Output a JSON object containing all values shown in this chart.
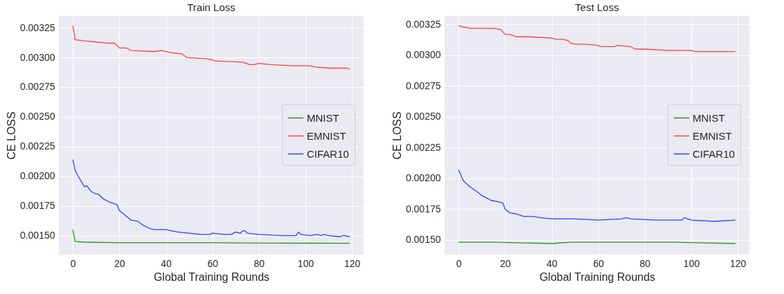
{
  "chart_data": [
    {
      "type": "line",
      "title": "Train Loss",
      "xlabel": "Global Training Rounds",
      "ylabel": "CE LOSS",
      "legend": "right",
      "grid": true,
      "xlim": [
        -6,
        125
      ],
      "xticks": [
        0,
        20,
        40,
        60,
        80,
        100,
        120
      ],
      "ylim": [
        0.00134,
        0.00335
      ],
      "yticks": [
        {
          "value": 0.0015,
          "label": "0.00150"
        },
        {
          "value": 0.00175,
          "label": "0.00175"
        },
        {
          "value": 0.002,
          "label": "0.00200"
        },
        {
          "value": 0.00225,
          "label": "0.00225"
        },
        {
          "value": 0.0025,
          "label": "0.00250"
        },
        {
          "value": 0.00275,
          "label": "0.00275"
        },
        {
          "value": 0.003,
          "label": "0.00300"
        },
        {
          "value": 0.00325,
          "label": "0.00325"
        }
      ],
      "series": [
        {
          "name": "MNIST",
          "color": "#229922",
          "x": [
            0,
            1,
            5,
            20,
            40,
            60,
            80,
            100,
            119
          ],
          "values": [
            0.00155,
            0.00145,
            0.001445,
            0.00144,
            0.00144,
            0.00144,
            0.001437,
            0.001436,
            0.001435
          ]
        },
        {
          "name": "EMNIST",
          "color": "#ff4040",
          "x": [
            0,
            1,
            5,
            10,
            15,
            18,
            20,
            23,
            25,
            35,
            38,
            40,
            42,
            47,
            49,
            57,
            60,
            61,
            73,
            76,
            78,
            80,
            85,
            95,
            102,
            104,
            110,
            118,
            119
          ],
          "values": [
            0.00327,
            0.00315,
            0.00314,
            0.00313,
            0.00312,
            0.00312,
            0.00308,
            0.00308,
            0.00306,
            0.00305,
            0.00306,
            0.00305,
            0.00304,
            0.00303,
            0.003,
            0.00299,
            0.00298,
            0.00297,
            0.00296,
            0.00294,
            0.00294,
            0.00295,
            0.00294,
            0.00293,
            0.00293,
            0.00292,
            0.00291,
            0.00291,
            0.0029
          ]
        },
        {
          "name": "CIFAR10",
          "color": "#3b3bff",
          "x": [
            0,
            1,
            2,
            5,
            6,
            8,
            10,
            11,
            13,
            16,
            19,
            20,
            22,
            25,
            28,
            30,
            33,
            35,
            40,
            45,
            50,
            55,
            59,
            60,
            65,
            68,
            70,
            72,
            73,
            74,
            75,
            80,
            90,
            96,
            97,
            98,
            102,
            105,
            107,
            108,
            110,
            115,
            116,
            117,
            119
          ],
          "values": [
            0.00214,
            0.00205,
            0.00201,
            0.00191,
            0.00192,
            0.00187,
            0.00185,
            0.00185,
            0.00181,
            0.00178,
            0.00176,
            0.00171,
            0.00168,
            0.00163,
            0.00162,
            0.00159,
            0.00156,
            0.00155,
            0.00155,
            0.00153,
            0.00152,
            0.00151,
            0.00151,
            0.00152,
            0.00151,
            0.00151,
            0.00153,
            0.00152,
            0.00154,
            0.00154,
            0.00152,
            0.00151,
            0.0015,
            0.0015,
            0.00153,
            0.00151,
            0.0015,
            0.00151,
            0.0015,
            0.00151,
            0.0015,
            0.00149,
            0.0015,
            0.0015,
            0.00149
          ]
        }
      ]
    },
    {
      "type": "line",
      "title": "Test Loss",
      "xlabel": "Global Training Rounds",
      "ylabel": "CE LOSS",
      "legend": "right",
      "grid": true,
      "xlim": [
        -6,
        125
      ],
      "xticks": [
        0,
        20,
        40,
        60,
        80,
        100,
        120
      ],
      "ylim": [
        0.00138,
        0.00332
      ],
      "yticks": [
        {
          "value": 0.0015,
          "label": "0.00150"
        },
        {
          "value": 0.00175,
          "label": "0.00175"
        },
        {
          "value": 0.002,
          "label": "0.00200"
        },
        {
          "value": 0.00225,
          "label": "0.00225"
        },
        {
          "value": 0.0025,
          "label": "0.00250"
        },
        {
          "value": 0.00275,
          "label": "0.00275"
        },
        {
          "value": 0.003,
          "label": "0.00300"
        },
        {
          "value": 0.00325,
          "label": "0.00325"
        }
      ],
      "series": [
        {
          "name": "MNIST",
          "color": "#229922",
          "x": [
            0,
            15,
            40,
            48,
            88,
            93,
            119
          ],
          "values": [
            0.00148,
            0.00148,
            0.00147,
            0.00148,
            0.00148,
            0.00148,
            0.00147
          ]
        },
        {
          "name": "EMNIST",
          "color": "#ff4040",
          "x": [
            0,
            2,
            5,
            10,
            15,
            18,
            20,
            22,
            25,
            30,
            40,
            42,
            45,
            47,
            48,
            50,
            55,
            60,
            61,
            67,
            68,
            74,
            76,
            80,
            90,
            100,
            102,
            110,
            119
          ],
          "values": [
            0.00324,
            0.00323,
            0.00322,
            0.00322,
            0.00322,
            0.00321,
            0.00317,
            0.00317,
            0.00315,
            0.00315,
            0.00314,
            0.00313,
            0.00313,
            0.00312,
            0.0031,
            0.00309,
            0.00309,
            0.00308,
            0.00307,
            0.00307,
            0.00308,
            0.00307,
            0.00305,
            0.00305,
            0.00304,
            0.00304,
            0.00303,
            0.00303,
            0.00303
          ]
        },
        {
          "name": "CIFAR10",
          "color": "#3b3bff",
          "x": [
            0,
            2,
            5,
            8,
            10,
            12,
            14,
            17,
            19,
            20,
            22,
            25,
            28,
            32,
            35,
            40,
            50,
            60,
            70,
            72,
            74,
            85,
            96,
            97,
            100,
            110,
            119
          ],
          "values": [
            0.00207,
            0.00198,
            0.00193,
            0.00189,
            0.00186,
            0.00184,
            0.00182,
            0.00181,
            0.0018,
            0.00175,
            0.00172,
            0.00171,
            0.00169,
            0.00169,
            0.00168,
            0.00167,
            0.00167,
            0.00166,
            0.00167,
            0.00168,
            0.00167,
            0.00166,
            0.00166,
            0.00168,
            0.00166,
            0.00165,
            0.00166
          ]
        }
      ]
    }
  ]
}
